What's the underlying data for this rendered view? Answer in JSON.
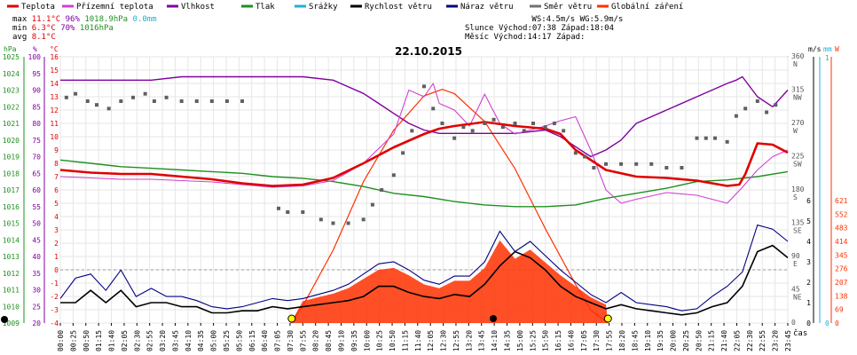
{
  "legend": [
    {
      "label": "Teplota",
      "color": "#e00000"
    },
    {
      "label": "Přízemní teplota",
      "color": "#d040d0"
    },
    {
      "label": "Vlhkost",
      "color": "#8000a0"
    },
    {
      "label": "Tlak",
      "color": "#209020"
    },
    {
      "label": "Srážky",
      "color": "#20b0d0"
    },
    {
      "label": "Rychlost větru",
      "color": "#000000"
    },
    {
      "label": "Náraz větru",
      "color": "#000080"
    },
    {
      "label": "Směr větru",
      "color": "#707070"
    },
    {
      "label": "Globální záření",
      "color": "#ff3000"
    }
  ],
  "stats": {
    "max_label": "max",
    "max_temp": "11.1°C",
    "max_hum": "96%",
    "max_press": "1018.9hPa",
    "max_rain": "0.0mm",
    "min_label": "min",
    "min_temp": "6.3°C",
    "min_hum": "70%",
    "min_press": "1016hPa",
    "avg_label": "avg",
    "avg_temp": "8.1°C",
    "ws": "WS:4.5m/s",
    "wg": "WG:5.9m/s",
    "sun_label": "Slunce",
    "sun_rise": "Východ:07:38",
    "sun_set": "Západ:18:04",
    "moon_label": "Měsíc",
    "moon_rise": "Východ:14:17",
    "moon_set": "Západ:"
  },
  "colors": {
    "hpa": "#209020",
    "pct": "#8000a0",
    "temp": "#e00000",
    "ms": "#000000",
    "mm": "#20b0d0",
    "w": "#ff3000",
    "wind": "#000080",
    "dir": "#606060"
  },
  "chart_data": {
    "type": "line",
    "title": "22.10.2015",
    "xlabel": "čas",
    "x_ticks": [
      "00:00",
      "00:25",
      "00:50",
      "01:15",
      "01:40",
      "02:05",
      "02:30",
      "02:55",
      "03:20",
      "03:45",
      "04:10",
      "04:35",
      "05:00",
      "05:25",
      "05:50",
      "06:15",
      "06:40",
      "07:05",
      "07:30",
      "07:55",
      "08:20",
      "08:45",
      "09:10",
      "09:35",
      "10:00",
      "10:25",
      "10:50",
      "11:15",
      "11:40",
      "12:05",
      "12:30",
      "12:55",
      "13:20",
      "13:45",
      "14:10",
      "14:35",
      "15:00",
      "15:25",
      "15:50",
      "16:15",
      "16:40",
      "17:05",
      "17:30",
      "17:55",
      "18:20",
      "18:45",
      "19:10",
      "19:35",
      "20:00",
      "20:25",
      "20:50",
      "21:15",
      "21:40",
      "22:05",
      "22:30",
      "22:55",
      "23:20",
      "23:45"
    ],
    "axes": {
      "hpa": {
        "label": "hPa",
        "ticks": [
          "1025",
          "1024",
          "1023",
          "1022",
          "1021",
          "1020",
          "1019",
          "1018",
          "1017",
          "1016",
          "1015",
          "1014",
          "1013",
          "1012",
          "1011",
          "1010",
          "1009"
        ],
        "ylim": [
          1009,
          1025
        ]
      },
      "pct": {
        "label": "%",
        "ticks": [
          "100",
          "95",
          "90",
          "85",
          "80",
          "75",
          "70",
          "65",
          "60",
          "55",
          "50",
          "45",
          "40",
          "35",
          "30",
          "25",
          "20"
        ],
        "ylim": [
          20,
          100
        ]
      },
      "temp": {
        "label": "°C",
        "ticks": [
          "16",
          "15",
          "14",
          "13",
          "12",
          "11",
          "10",
          "9",
          "8",
          "7",
          "6",
          "5",
          "4",
          "3",
          "2",
          "1",
          "0",
          "-1",
          "-2",
          "-3",
          "-4"
        ],
        "ylim": [
          -4,
          16
        ]
      },
      "dir": {
        "ticks": [
          {
            "v": "360",
            "d": "N"
          },
          {
            "v": "315",
            "d": "NW"
          },
          {
            "v": "270",
            "d": "W"
          },
          {
            "v": "225",
            "d": "SW"
          },
          {
            "v": "180",
            "d": "S"
          },
          {
            "v": "135",
            "d": "SE"
          },
          {
            "v": "90",
            "d": "E"
          },
          {
            "v": "45",
            "d": "NE"
          },
          {
            "v": "0",
            "d": ""
          }
        ]
      },
      "ms": {
        "label": "m/s",
        "ticks": [
          "6",
          "5",
          "4",
          "3",
          "2",
          "1",
          "0"
        ],
        "ylim": [
          0,
          6
        ]
      },
      "mm": {
        "label": "mm",
        "ticks": [
          "1",
          "0"
        ],
        "ylim": [
          0,
          1
        ]
      },
      "w": {
        "label": "W",
        "ticks": [
          "621",
          "552",
          "483",
          "414",
          "345",
          "276",
          "207",
          "138",
          "69",
          "0"
        ],
        "ylim": [
          0,
          621
        ]
      }
    },
    "series": [
      {
        "name": "Vlhkost",
        "unit": "%",
        "x_hours": [
          0,
          1,
          2,
          3,
          4,
          5,
          6,
          7,
          8,
          9,
          10,
          10.5,
          11,
          11.5,
          12,
          12.5,
          13,
          14,
          15,
          16,
          16.5,
          17,
          17.5,
          18,
          18.5,
          19,
          20,
          21,
          22,
          22.3,
          22.5,
          23,
          23.5,
          24
        ],
        "values": [
          93,
          93,
          93,
          93,
          94,
          94,
          94,
          94,
          94,
          93,
          89,
          86,
          83,
          80,
          78,
          77,
          77,
          77,
          77,
          78,
          76,
          73,
          70,
          72,
          75,
          80,
          84,
          88,
          92,
          93,
          94,
          88,
          85,
          90
        ]
      },
      {
        "name": "Tlak",
        "unit": "hPa",
        "x_hours": [
          0,
          1,
          2,
          3,
          4,
          5,
          6,
          7,
          8,
          9,
          10,
          11,
          12,
          13,
          14,
          15,
          16,
          17,
          18,
          19,
          20,
          21,
          22,
          23,
          24
        ],
        "values": [
          1018.8,
          1018.6,
          1018.4,
          1018.3,
          1018.2,
          1018.1,
          1018.0,
          1017.8,
          1017.7,
          1017.5,
          1017.2,
          1016.8,
          1016.6,
          1016.3,
          1016.1,
          1016.0,
          1016.0,
          1016.1,
          1016.5,
          1016.8,
          1017.1,
          1017.5,
          1017.6,
          1017.8,
          1018.1
        ]
      },
      {
        "name": "Teplota",
        "unit": "°C",
        "x_hours": [
          0,
          1,
          2,
          3,
          4,
          5,
          6,
          7,
          8,
          9,
          10,
          11,
          12,
          12.5,
          13,
          14,
          15,
          16,
          16.5,
          17,
          18,
          19,
          20,
          21,
          22,
          22.4,
          22.6,
          23,
          23.5,
          24
        ],
        "values": [
          7.5,
          7.3,
          7.2,
          7.2,
          7.0,
          6.8,
          6.5,
          6.3,
          6.4,
          6.9,
          8.0,
          9.2,
          10.2,
          10.6,
          10.8,
          11.1,
          10.8,
          10.6,
          10.2,
          9.0,
          7.5,
          7.0,
          6.9,
          6.7,
          6.3,
          6.4,
          7.2,
          9.5,
          9.4,
          8.8
        ]
      },
      {
        "name": "Přízemní teplota",
        "unit": "°C",
        "x_hours": [
          0,
          1,
          2,
          3,
          4,
          5,
          6,
          7,
          8,
          9,
          10,
          11,
          11.5,
          12,
          12.3,
          12.5,
          13,
          13.5,
          14,
          14.5,
          15,
          16,
          16.5,
          17,
          17.5,
          18,
          18.5,
          19,
          20,
          21,
          22,
          22.5,
          23,
          23.5,
          24
        ],
        "values": [
          7.0,
          6.9,
          6.8,
          6.8,
          6.7,
          6.6,
          6.4,
          6.2,
          6.3,
          6.7,
          8.0,
          10.2,
          13.5,
          13.0,
          14.0,
          12.5,
          12.0,
          10.8,
          13.2,
          11.0,
          10.2,
          10.8,
          11.2,
          11.5,
          9.0,
          6.0,
          5.0,
          5.3,
          5.8,
          5.6,
          5.0,
          6.2,
          7.5,
          8.5,
          9.0
        ]
      },
      {
        "name": "Globální záření",
        "unit": "W",
        "x_hours": [
          7.6,
          8,
          9,
          10,
          11,
          12,
          12.6,
          13,
          14,
          15,
          16,
          17,
          17.5,
          18.07
        ],
        "values": [
          0,
          40,
          170,
          330,
          450,
          530,
          545,
          535,
          470,
          360,
          220,
          90,
          30,
          0
        ]
      }
    ],
    "wind": {
      "unit": "m/s",
      "x_hours": [
        0,
        0.5,
        1,
        1.5,
        2,
        2.5,
        3,
        3.5,
        4,
        4.5,
        5,
        5.5,
        6,
        6.5,
        7,
        7.5,
        8,
        8.5,
        9,
        9.5,
        10,
        10.5,
        11,
        11.5,
        12,
        12.5,
        13,
        13.5,
        14,
        14.5,
        15,
        15.5,
        16,
        16.5,
        17,
        17.5,
        18,
        18.5,
        19,
        19.5,
        20,
        20.5,
        21,
        21.5,
        22,
        22.5,
        23,
        23.5,
        24
      ],
      "speed": [
        1.0,
        1.0,
        1.6,
        1.0,
        1.6,
        0.8,
        1.0,
        1.0,
        0.8,
        0.8,
        0.5,
        0.5,
        0.6,
        0.6,
        0.8,
        0.7,
        0.8,
        0.9,
        1.0,
        1.1,
        1.3,
        1.8,
        1.8,
        1.5,
        1.3,
        1.2,
        1.4,
        1.3,
        1.9,
        2.8,
        3.5,
        3.2,
        2.6,
        1.8,
        1.3,
        1.0,
        0.7,
        0.9,
        0.7,
        0.6,
        0.5,
        0.4,
        0.5,
        0.8,
        1.0,
        1.8,
        3.5,
        3.8,
        3.2
      ],
      "gust": [
        1.2,
        2.2,
        2.4,
        1.6,
        2.6,
        1.3,
        1.7,
        1.3,
        1.3,
        1.1,
        0.8,
        0.7,
        0.8,
        1.0,
        1.2,
        1.1,
        1.2,
        1.4,
        1.6,
        1.9,
        2.4,
        2.9,
        3.0,
        2.6,
        2.1,
        1.9,
        2.3,
        2.3,
        3.0,
        4.5,
        3.5,
        4.0,
        3.3,
        2.6,
        2.0,
        1.4,
        1.0,
        1.5,
        1.0,
        0.9,
        0.8,
        0.6,
        0.7,
        1.3,
        1.8,
        2.5,
        4.8,
        4.6,
        4.0
      ]
    },
    "wind_direction": {
      "unit": "°",
      "x_hours": [
        0.2,
        0.5,
        0.9,
        1.2,
        1.6,
        2.0,
        2.4,
        2.8,
        3.1,
        3.5,
        4.0,
        4.5,
        5.0,
        5.5,
        6.0,
        7.2,
        7.5,
        8.0,
        8.6,
        9.0,
        9.5,
        10.0,
        10.3,
        10.6,
        11.0,
        11.3,
        11.6,
        12.0,
        12.3,
        12.6,
        13.0,
        13.3,
        13.6,
        14.0,
        14.3,
        14.6,
        15.0,
        15.3,
        15.6,
        16.0,
        16.3,
        16.6,
        17.0,
        17.3,
        17.6,
        18.0,
        18.5,
        19.0,
        19.5,
        20.0,
        20.5,
        21.0,
        21.3,
        21.6,
        22.0,
        22.3,
        22.6,
        23.0,
        23.3,
        23.6
      ],
      "values": [
        305,
        310,
        300,
        295,
        290,
        300,
        305,
        310,
        300,
        305,
        300,
        300,
        300,
        300,
        300,
        155,
        150,
        150,
        140,
        135,
        135,
        140,
        160,
        180,
        200,
        230,
        260,
        320,
        290,
        270,
        250,
        265,
        260,
        270,
        275,
        265,
        270,
        260,
        270,
        265,
        270,
        260,
        230,
        225,
        210,
        215,
        215,
        215,
        215,
        210,
        210,
        250,
        250,
        250,
        245,
        280,
        290,
        300,
        285,
        295
      ]
    }
  }
}
